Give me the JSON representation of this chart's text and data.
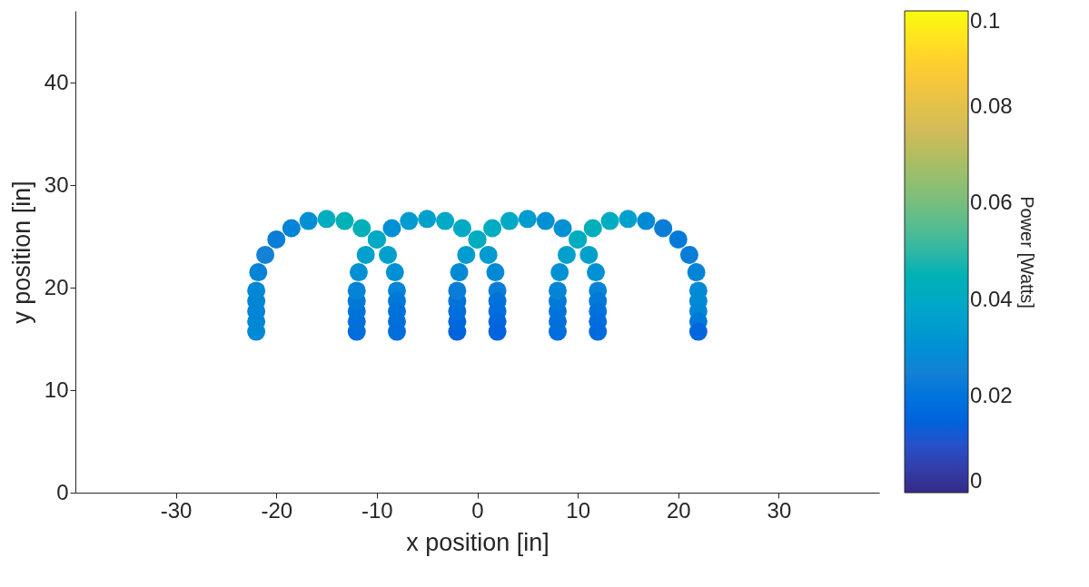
{
  "chart_data": {
    "type": "scatter",
    "xlabel": "x position [in]",
    "ylabel": "y position [in]",
    "clabel": "Power [Watts]",
    "x": [
      -22,
      -22,
      -22,
      -22,
      -22,
      -21.8,
      -21.1,
      -20,
      -18.5,
      -16.8,
      -15,
      -13.2,
      -11.5,
      -10,
      -8.9,
      -8.2,
      -8,
      -8,
      -8,
      -8,
      -8,
      -12,
      -12,
      -12,
      -12,
      -12,
      -11.8,
      -11.1,
      -10,
      -8.5,
      -6.8,
      -5,
      -3.2,
      -1.5,
      0,
      1.1,
      1.8,
      2,
      2,
      2,
      2,
      2,
      -2,
      -2,
      -2,
      -2,
      -2,
      -1.8,
      -1.1,
      0,
      1.5,
      3.2,
      5,
      6.8,
      8.5,
      10,
      11.1,
      11.8,
      12,
      12,
      12,
      12,
      12,
      8,
      8,
      8,
      8,
      8,
      8.2,
      8.9,
      10,
      11.5,
      13.2,
      15,
      16.8,
      18.5,
      20,
      21.1,
      21.8,
      22,
      22,
      22,
      22,
      22
    ],
    "values": [
      15.7,
      16.7,
      17.7,
      18.7,
      19.7,
      21.5,
      23.2,
      24.7,
      25.8,
      26.5,
      26.7,
      26.5,
      25.8,
      24.7,
      23.2,
      21.5,
      19.7,
      18.7,
      17.7,
      16.7,
      15.7,
      15.7,
      16.7,
      17.7,
      18.7,
      19.7,
      21.5,
      23.2,
      24.7,
      25.8,
      26.5,
      26.7,
      26.5,
      25.8,
      24.7,
      23.2,
      21.5,
      19.7,
      18.7,
      17.7,
      16.7,
      15.7,
      15.7,
      16.7,
      17.7,
      18.7,
      19.7,
      21.5,
      23.2,
      24.7,
      25.8,
      26.5,
      26.7,
      26.5,
      25.8,
      24.7,
      23.2,
      21.5,
      19.7,
      18.7,
      17.7,
      16.7,
      15.7,
      15.7,
      16.7,
      17.7,
      18.7,
      19.7,
      21.5,
      23.2,
      24.7,
      25.8,
      26.5,
      26.7,
      26.5,
      25.8,
      24.7,
      23.2,
      21.5,
      19.7,
      18.7,
      17.7,
      16.7,
      15.7
    ],
    "cvalues": [
      0.028,
      0.027,
      0.026,
      0.026,
      0.027,
      0.026,
      0.025,
      0.024,
      0.026,
      0.03,
      0.042,
      0.045,
      0.044,
      0.04,
      0.036,
      0.03,
      0.026,
      0.022,
      0.02,
      0.019,
      0.018,
      0.018,
      0.019,
      0.02,
      0.022,
      0.026,
      0.03,
      0.036,
      0.04,
      0.03,
      0.034,
      0.036,
      0.04,
      0.04,
      0.042,
      0.034,
      0.028,
      0.024,
      0.02,
      0.018,
      0.016,
      0.015,
      0.015,
      0.016,
      0.018,
      0.02,
      0.024,
      0.028,
      0.034,
      0.042,
      0.042,
      0.04,
      0.034,
      0.03,
      0.03,
      0.04,
      0.036,
      0.03,
      0.026,
      0.022,
      0.02,
      0.018,
      0.017,
      0.018,
      0.019,
      0.02,
      0.022,
      0.026,
      0.03,
      0.036,
      0.042,
      0.044,
      0.042,
      0.036,
      0.028,
      0.024,
      0.022,
      0.024,
      0.026,
      0.028,
      0.028,
      0.027,
      0.022,
      0.016
    ],
    "xlim": [
      -40,
      40
    ],
    "xticks": [
      -30,
      -20,
      -10,
      0,
      10,
      20,
      30
    ],
    "ylim": [
      0,
      47
    ],
    "yticks": [
      0,
      10,
      20,
      30,
      40
    ],
    "clim": [
      0,
      0.1
    ],
    "cticks": [
      0,
      0.02,
      0.04,
      0.06,
      0.08,
      0.1
    ],
    "marker": "circle",
    "grid": false
  }
}
